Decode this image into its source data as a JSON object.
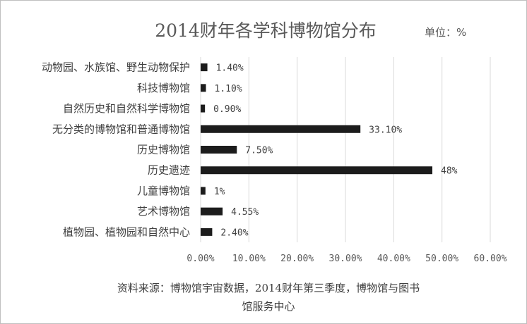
{
  "chart_data": {
    "type": "bar",
    "orientation": "horizontal",
    "title": "2014财年各学科博物馆分布",
    "unit": "单位：%",
    "categories": [
      "动物园、水族馆、野生动物保护",
      "科技博物馆",
      "自然历史和自然科学博物馆",
      "无分类的博物馆和普通博物馆",
      "历史博物馆",
      "历史遗迹",
      "儿童博物馆",
      "艺术博物馆",
      "植物园、植物园和自然中心"
    ],
    "values": [
      1.4,
      1.1,
      0.9,
      33.1,
      7.5,
      48,
      1,
      4.55,
      2.4
    ],
    "data_labels": [
      "1.40%",
      "1.10%",
      "0.90%",
      "33.10%",
      "7.50%",
      "48%",
      "1%",
      "4.55%",
      "2.40%"
    ],
    "xlim": [
      0,
      60
    ],
    "x_ticks": [
      0,
      10,
      20,
      30,
      40,
      50,
      60
    ],
    "x_tick_labels": [
      "0.00%",
      "10.00%",
      "20.00%",
      "30.00%",
      "40.00%",
      "50.00%",
      "60.00%"
    ],
    "grid": true,
    "bar_color": "#1c1c1c",
    "source_lines": [
      "资料来源：博物馆宇宙数据，2014财年第三季度，博物馆与图书",
      "馆服务中心"
    ]
  }
}
